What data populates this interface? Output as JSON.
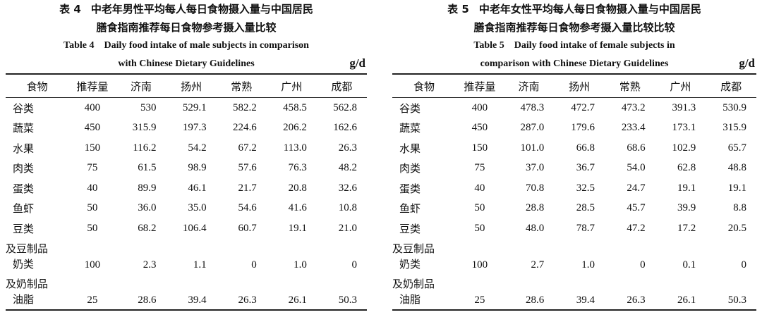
{
  "tables": [
    {
      "id": "left",
      "number_cn": "表 4",
      "title_cn_line1": "中老年男性平均每人每日食物摄入量与中国居民",
      "title_cn_line2": "膳食指南推荐每日食物参考摄入量比较",
      "number_en": "Table 4",
      "title_en_line1": "Daily food intake of male subjects in comparison",
      "title_en_line2": "with Chinese Dietary Guidelines",
      "unit": "g/d",
      "headers": [
        "食物",
        "推荐量",
        "济南",
        "扬州",
        "常熟",
        "广州",
        "成都"
      ],
      "rows": [
        {
          "food": "谷类",
          "food_cont": "",
          "rec": "400",
          "vals": [
            "530",
            "529.1",
            "582.2",
            "458.5",
            "562.8"
          ]
        },
        {
          "food": "蔬菜",
          "food_cont": "",
          "rec": "450",
          "vals": [
            "315.9",
            "197.3",
            "224.6",
            "206.2",
            "162.6"
          ]
        },
        {
          "food": "水果",
          "food_cont": "",
          "rec": "150",
          "vals": [
            "116.2",
            "54.2",
            "67.2",
            "113.0",
            "26.3"
          ]
        },
        {
          "food": "肉类",
          "food_cont": "",
          "rec": "75",
          "vals": [
            "61.5",
            "98.9",
            "57.6",
            "76.3",
            "48.2"
          ]
        },
        {
          "food": "蛋类",
          "food_cont": "",
          "rec": "40",
          "vals": [
            "89.9",
            "46.1",
            "21.7",
            "20.8",
            "32.6"
          ]
        },
        {
          "food": "鱼虾",
          "food_cont": "",
          "rec": "50",
          "vals": [
            "36.0",
            "35.0",
            "54.6",
            "41.6",
            "10.8"
          ]
        },
        {
          "food": "豆类",
          "food_cont": "",
          "rec": "50",
          "vals": [
            "68.2",
            "106.4",
            "60.7",
            "19.1",
            "21.0"
          ]
        },
        {
          "food": "奶类",
          "food_cont": "及豆制品",
          "rec": "100",
          "vals": [
            "2.3",
            "1.1",
            "0",
            "1.0",
            "0"
          ]
        },
        {
          "food": "油脂",
          "food_cont": "及奶制品",
          "rec": "25",
          "vals": [
            "28.6",
            "39.4",
            "26.3",
            "26.1",
            "50.3"
          ]
        }
      ]
    },
    {
      "id": "right",
      "number_cn": "表 5",
      "title_cn_line1": "中老年女性平均每人每日食物摄入量与中国居民",
      "title_cn_line2": "膳食指南推荐每日食物参考摄入量比较比较",
      "number_en": "Table 5",
      "title_en_line1": "Daily food intake of female subjects in",
      "title_en_line2": "comparison with Chinese Dietary Guidelines",
      "unit": "g/d",
      "headers": [
        "食物",
        "推荐量",
        "济南",
        "扬州",
        "常熟",
        "广州",
        "成都"
      ],
      "rows": [
        {
          "food": "谷类",
          "food_cont": "",
          "rec": "400",
          "vals": [
            "478.3",
            "472.7",
            "473.2",
            "391.3",
            "530.9"
          ]
        },
        {
          "food": "蔬菜",
          "food_cont": "",
          "rec": "450",
          "vals": [
            "287.0",
            "179.6",
            "233.4",
            "173.1",
            "315.9"
          ]
        },
        {
          "food": "水果",
          "food_cont": "",
          "rec": "150",
          "vals": [
            "101.0",
            "66.8",
            "68.6",
            "102.9",
            "65.7"
          ]
        },
        {
          "food": "肉类",
          "food_cont": "",
          "rec": "75",
          "vals": [
            "37.0",
            "36.7",
            "54.0",
            "62.8",
            "48.8"
          ]
        },
        {
          "food": "蛋类",
          "food_cont": "",
          "rec": "40",
          "vals": [
            "70.8",
            "32.5",
            "24.7",
            "19.1",
            "19.1"
          ]
        },
        {
          "food": "鱼虾",
          "food_cont": "",
          "rec": "50",
          "vals": [
            "28.8",
            "28.5",
            "45.7",
            "39.9",
            "8.8"
          ]
        },
        {
          "food": "豆类",
          "food_cont": "",
          "rec": "50",
          "vals": [
            "48.0",
            "78.7",
            "47.2",
            "17.2",
            "20.5"
          ]
        },
        {
          "food": "奶类",
          "food_cont": "及豆制品",
          "rec": "100",
          "vals": [
            "2.7",
            "1.0",
            "0",
            "0.1",
            "0"
          ]
        },
        {
          "food": "油脂",
          "food_cont": "及奶制品",
          "rec": "25",
          "vals": [
            "28.6",
            "39.4",
            "26.3",
            "26.1",
            "50.3"
          ]
        }
      ]
    }
  ]
}
